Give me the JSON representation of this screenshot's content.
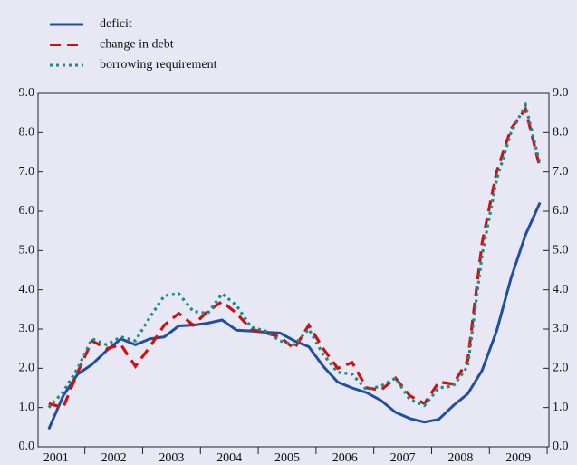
{
  "chart_data": {
    "type": "line",
    "x": [
      2001.375,
      2001.625,
      2001.875,
      2002.125,
      2002.375,
      2002.625,
      2002.875,
      2003.125,
      2003.375,
      2003.625,
      2003.875,
      2004.125,
      2004.375,
      2004.625,
      2004.875,
      2005.125,
      2005.375,
      2005.625,
      2005.875,
      2006.125,
      2006.375,
      2006.625,
      2006.875,
      2007.125,
      2007.375,
      2007.625,
      2007.875,
      2008.125,
      2008.375,
      2008.625,
      2008.875,
      2009.125,
      2009.375,
      2009.625,
      2009.875
    ],
    "series": [
      {
        "name": "deficit",
        "color": "#1f4fa3",
        "style": "solid",
        "values": [
          0.45,
          1.3,
          1.85,
          2.1,
          2.45,
          2.75,
          2.6,
          2.75,
          2.8,
          3.08,
          3.1,
          3.15,
          3.23,
          2.97,
          2.95,
          2.92,
          2.9,
          2.7,
          2.55,
          2.05,
          1.65,
          1.5,
          1.38,
          1.18,
          0.88,
          0.72,
          0.63,
          0.7,
          1.05,
          1.35,
          1.95,
          2.95,
          4.3,
          5.4,
          6.22
        ]
      },
      {
        "name": "change in debt",
        "color": "#d01010",
        "style": "dashed",
        "values": [
          1.1,
          1.0,
          1.9,
          2.7,
          2.5,
          2.6,
          2.05,
          2.55,
          3.1,
          3.4,
          3.1,
          3.45,
          3.7,
          3.4,
          3.0,
          2.9,
          2.8,
          2.5,
          3.1,
          2.5,
          2.0,
          2.15,
          1.5,
          1.45,
          1.75,
          1.3,
          1.1,
          1.65,
          1.6,
          2.2,
          5.2,
          7.0,
          8.1,
          8.6,
          7.1
        ]
      },
      {
        "name": "borrowing requirement",
        "color": "#1a8a8a",
        "style": "dotted",
        "values": [
          1.0,
          1.4,
          2.0,
          2.75,
          2.6,
          2.8,
          2.7,
          3.3,
          3.85,
          3.9,
          3.45,
          3.4,
          3.9,
          3.6,
          3.05,
          2.95,
          2.7,
          2.6,
          3.0,
          2.35,
          1.9,
          1.85,
          1.45,
          1.55,
          1.75,
          1.2,
          1.05,
          1.5,
          1.55,
          2.05,
          4.9,
          6.8,
          8.0,
          8.7,
          7.2
        ]
      }
    ],
    "xlim": [
      2001.19,
      2010.03
    ],
    "xticks": [
      {
        "value": 2001.5,
        "label": "2001"
      },
      {
        "value": 2002.5,
        "label": "2002"
      },
      {
        "value": 2003.5,
        "label": "2003"
      },
      {
        "value": 2004.5,
        "label": "2004"
      },
      {
        "value": 2005.5,
        "label": "2005"
      },
      {
        "value": 2006.5,
        "label": "2006"
      },
      {
        "value": 2007.5,
        "label": "2007"
      },
      {
        "value": 2008.5,
        "label": "2008"
      },
      {
        "value": 2009.5,
        "label": "2009"
      }
    ],
    "ylim": [
      0,
      9
    ],
    "yticks": [
      {
        "value": 0,
        "label": "0.0"
      },
      {
        "value": 1,
        "label": "1.0"
      },
      {
        "value": 2,
        "label": "2.0"
      },
      {
        "value": 3,
        "label": "3.0"
      },
      {
        "value": 4,
        "label": "4.0"
      },
      {
        "value": 5,
        "label": "5.0"
      },
      {
        "value": 6,
        "label": "6.0"
      },
      {
        "value": 7,
        "label": "7.0"
      },
      {
        "value": 8,
        "label": "8.0"
      },
      {
        "value": 9,
        "label": "9.0"
      }
    ],
    "y2lim": [
      0,
      9
    ],
    "y2ticks": [
      {
        "value": 0,
        "label": "0.0"
      },
      {
        "value": 1,
        "label": "1.0"
      },
      {
        "value": 2,
        "label": "2.0"
      },
      {
        "value": 3,
        "label": "3.0"
      },
      {
        "value": 4,
        "label": "4.0"
      },
      {
        "value": 5,
        "label": "5.0"
      },
      {
        "value": 6,
        "label": "6.0"
      },
      {
        "value": 7,
        "label": "7.0"
      },
      {
        "value": 8,
        "label": "8.0"
      },
      {
        "value": 9,
        "label": "9.0"
      }
    ]
  }
}
